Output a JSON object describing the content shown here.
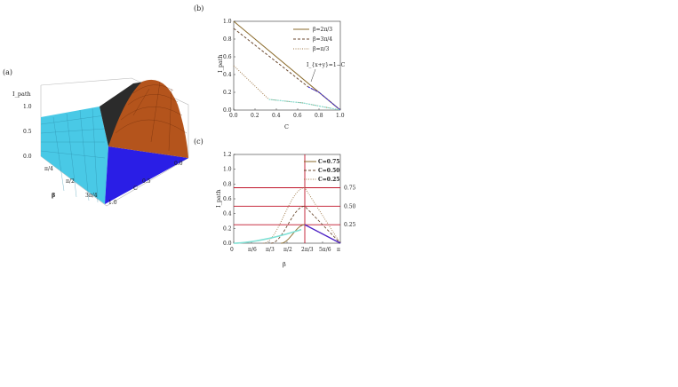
{
  "panels": {
    "a": "(a)",
    "b": "(b)",
    "c": "(c)"
  },
  "chart_data": [
    {
      "panel": "(a)",
      "type": "surface",
      "zlabel": "I_path",
      "xlabel": "β",
      "ylabel": "C",
      "z_ticks": [
        "0.0",
        "0.5",
        "1.0"
      ],
      "beta_ticks": [
        "π/4",
        "π/2",
        "3π/4"
      ],
      "c_ticks": [
        "0.0",
        "0.5",
        "1.0"
      ],
      "colors": {
        "low": "#2a1ee6",
        "left": "#49c9e6",
        "peak": "#b4541c",
        "dark": "#2b2b2b"
      }
    },
    {
      "panel": "(b)",
      "type": "line",
      "xlabel": "C",
      "ylabel": "I_path",
      "xlim": [
        0,
        1
      ],
      "ylim": [
        0,
        1
      ],
      "x_ticks": [
        "0.0",
        "0.2",
        "0.4",
        "0.6",
        "0.8",
        "1.0"
      ],
      "y_ticks": [
        "0.0",
        "0.2",
        "0.4",
        "0.6",
        "0.8",
        "1.0"
      ],
      "annotation": "I_{x+y}=1−C",
      "series": [
        {
          "name": "β=2π/3",
          "style": "solid",
          "color": "#8a6a2a",
          "x": [
            0,
            1
          ],
          "y": [
            1.0,
            0.0
          ]
        },
        {
          "name": "β=3π/4",
          "style": "dashed",
          "color": "#6b4a30",
          "x": [
            0,
            0.7,
            0.8,
            1
          ],
          "y": [
            0.92,
            0.26,
            0.2,
            0.0
          ]
        },
        {
          "name": "β=π/3",
          "style": "dotted",
          "color": "#a07a4a",
          "x": [
            0,
            0.33,
            0.65,
            1
          ],
          "y": [
            0.5,
            0.12,
            0.08,
            0.0
          ]
        }
      ],
      "segments": [
        {
          "color": "#3e2ce0",
          "x": [
            0.7,
            0.8,
            1
          ],
          "y": [
            0.26,
            0.2,
            0.0
          ]
        },
        {
          "color": "#7fe0d4",
          "x": [
            0.33,
            0.65,
            1
          ],
          "y": [
            0.12,
            0.08,
            0.0
          ]
        }
      ]
    },
    {
      "panel": "(c)",
      "type": "line",
      "xlabel": "β",
      "ylabel": "I_path",
      "xlim": [
        0,
        1
      ],
      "ylim": [
        0,
        1.2
      ],
      "x_ticks": [
        {
          "value": 0,
          "label": "0"
        },
        {
          "value": 0.1667,
          "label": "π/6"
        },
        {
          "value": 0.3333,
          "label": "π/3"
        },
        {
          "value": 0.5,
          "label": "π/2"
        },
        {
          "value": 0.6667,
          "label": "2π/3"
        },
        {
          "value": 0.8333,
          "label": "5π/6"
        },
        {
          "value": 1.0,
          "label": "π"
        }
      ],
      "y_ticks": [
        "0.0",
        "0.2",
        "0.4",
        "0.6",
        "0.8",
        "1.0",
        "1.2"
      ],
      "right_ticks": [
        {
          "value": 0.75,
          "label": "0.75"
        },
        {
          "value": 0.5,
          "label": "0.50"
        },
        {
          "value": 0.25,
          "label": "0.25"
        }
      ],
      "vline": 0.6667,
      "series": [
        {
          "name": "C=0.75",
          "style": "solid",
          "color": "#8a6a2a",
          "peak": 0.25
        },
        {
          "name": "C=0.50",
          "style": "dashed",
          "color": "#6b4a30",
          "peak": 0.5
        },
        {
          "name": "C=0.25",
          "style": "dotted",
          "color": "#a07a4a",
          "peak": 0.75
        }
      ],
      "hline_color": "#c0142a",
      "left_color": "#7fe0d4",
      "right_color": "#4a1ec8"
    }
  ]
}
